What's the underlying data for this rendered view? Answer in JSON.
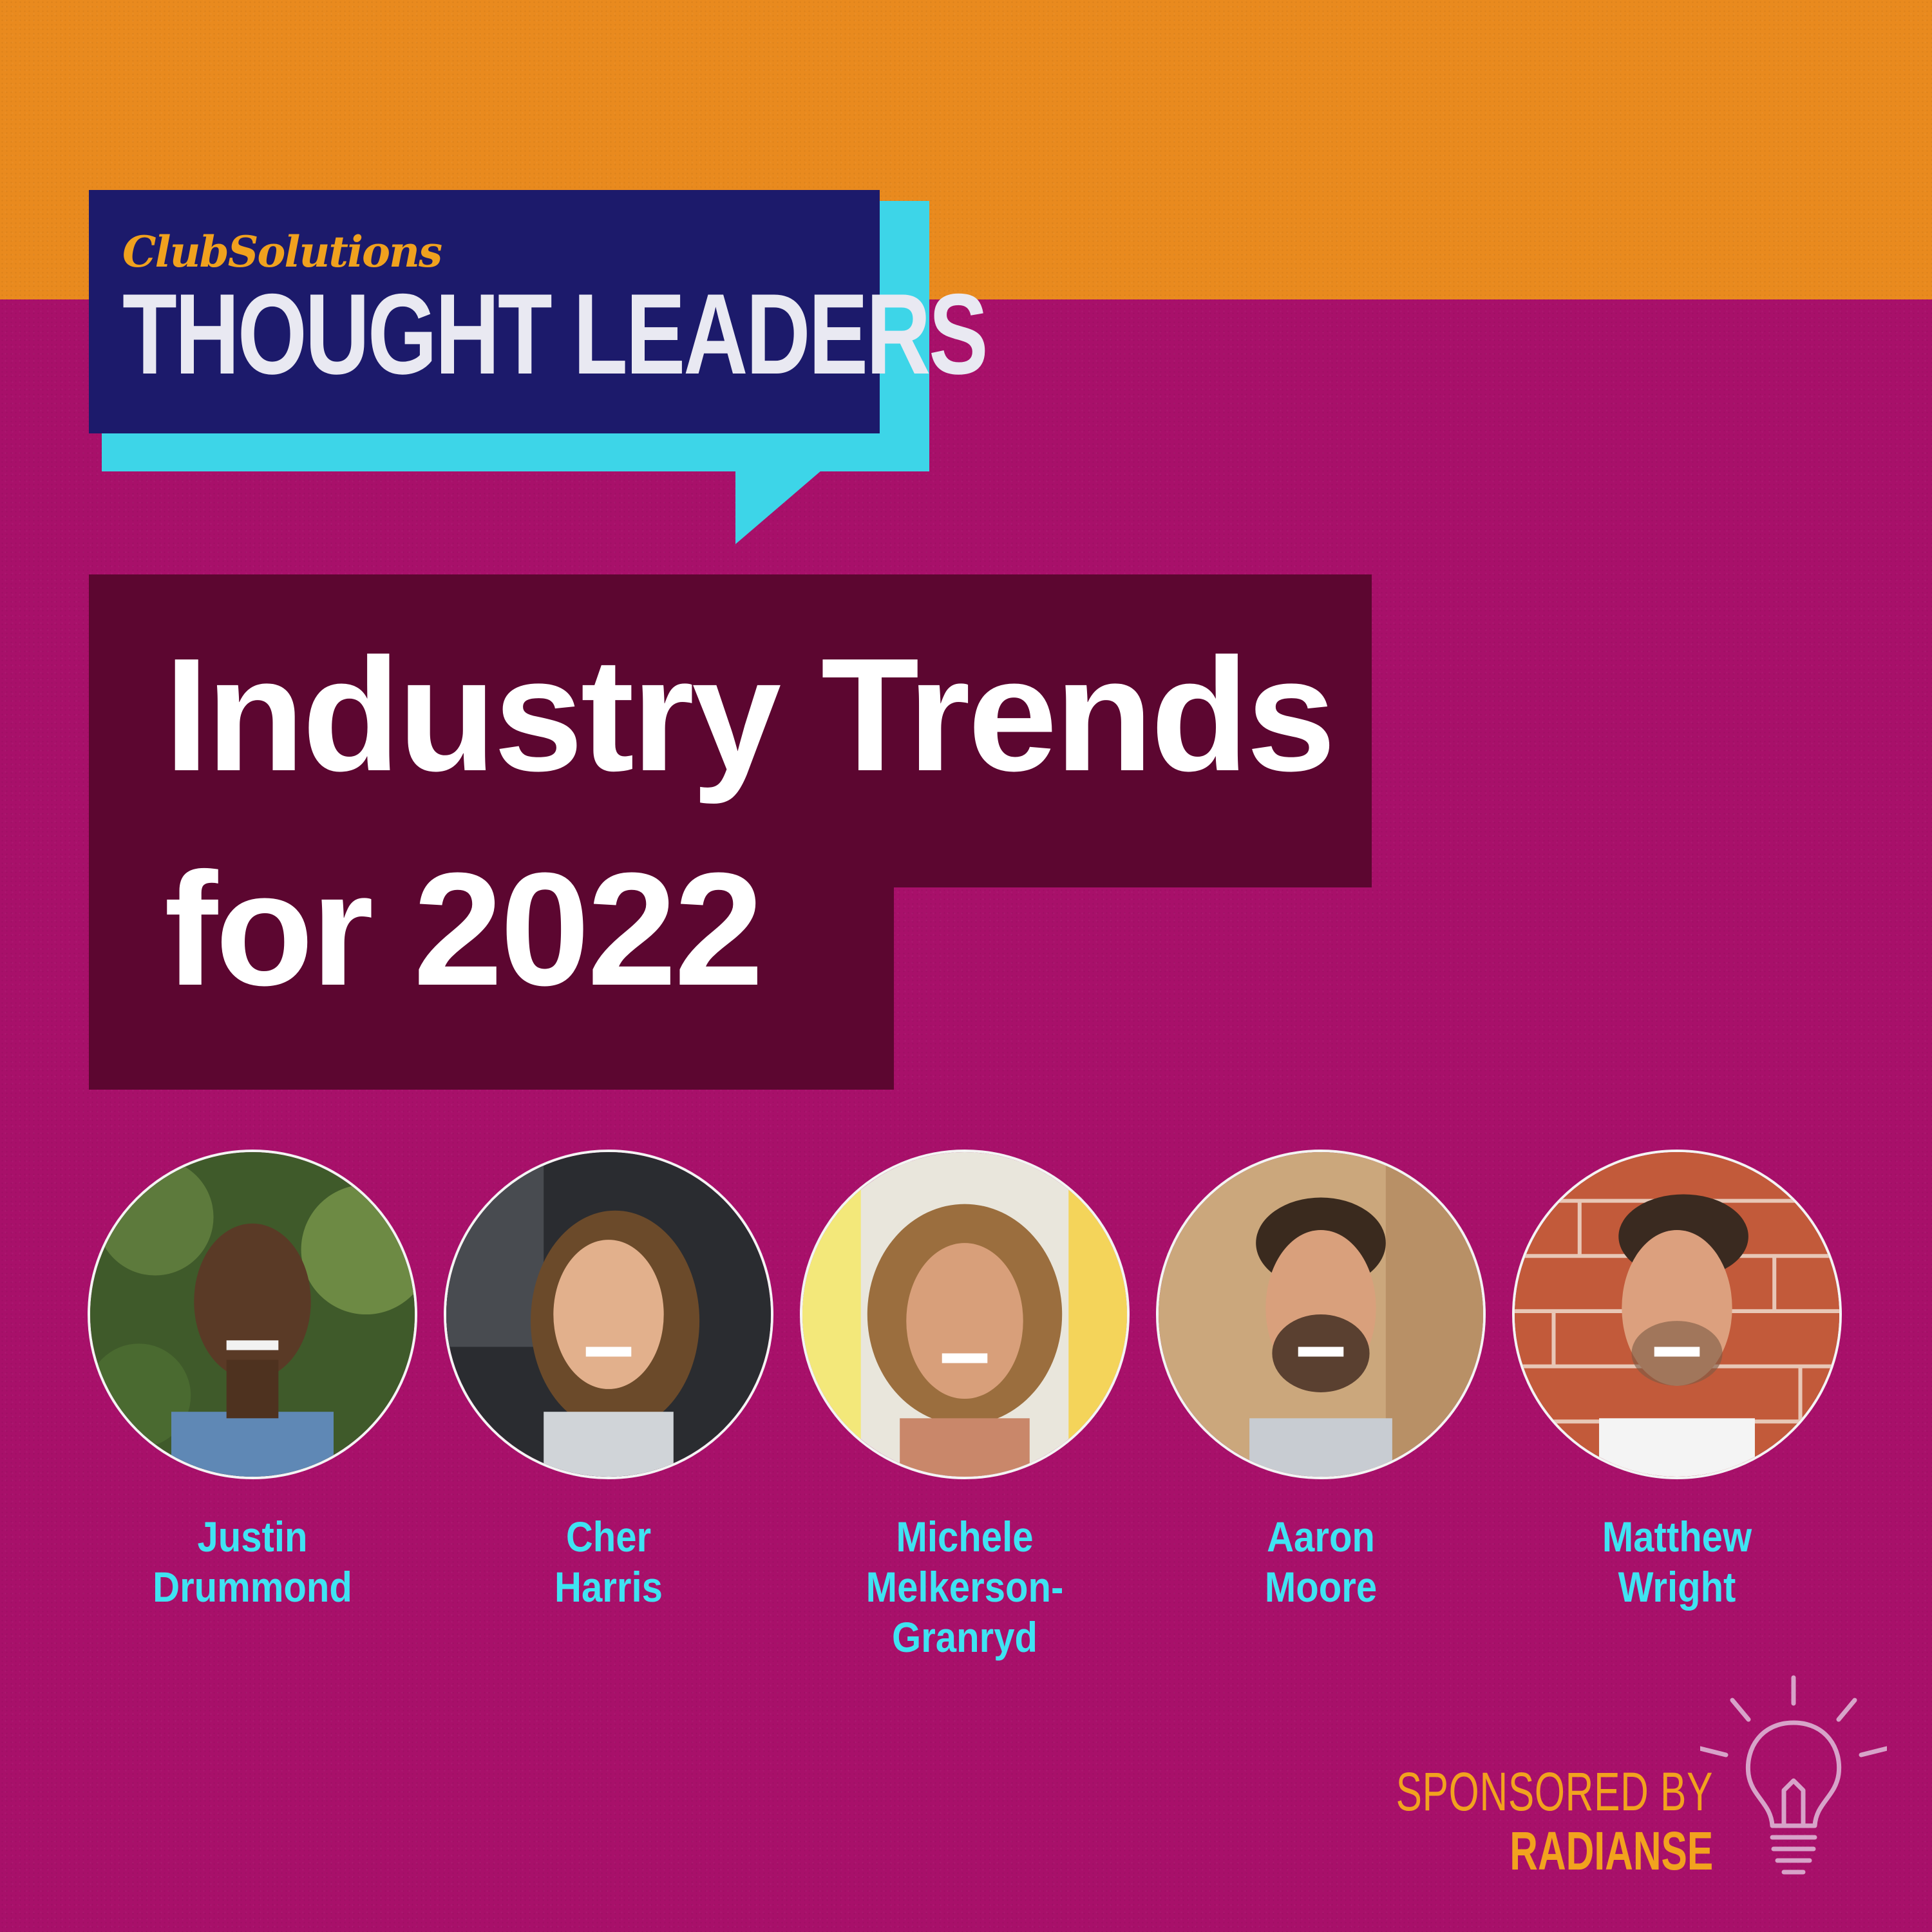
{
  "brand": {
    "name": "ClubSolutions",
    "series": "THOUGHT LEADERS"
  },
  "headline": {
    "line1": "Industry Trends",
    "line2": "for 2022"
  },
  "speakers": [
    {
      "first": "Justin",
      "last": "Drummond"
    },
    {
      "first": "Cher",
      "last": "Harris"
    },
    {
      "first": "Michele",
      "last": "Melkerson-Granryd"
    },
    {
      "first": "Aaron",
      "last": "Moore"
    },
    {
      "first": "Matthew",
      "last": "Wright"
    }
  ],
  "sponsor": {
    "label": "SPONSORED BY",
    "name": "RADIANSE",
    "icon": "lightbulb-icon"
  },
  "colors": {
    "background": "#a8106a",
    "top_band": "#e98a1e",
    "logo_box": "#1c1a6b",
    "logo_accent": "#3dd5e8",
    "headline_box": "#5c0630",
    "name_text": "#3fe3f2",
    "sponsor_text": "#f2a21e"
  }
}
